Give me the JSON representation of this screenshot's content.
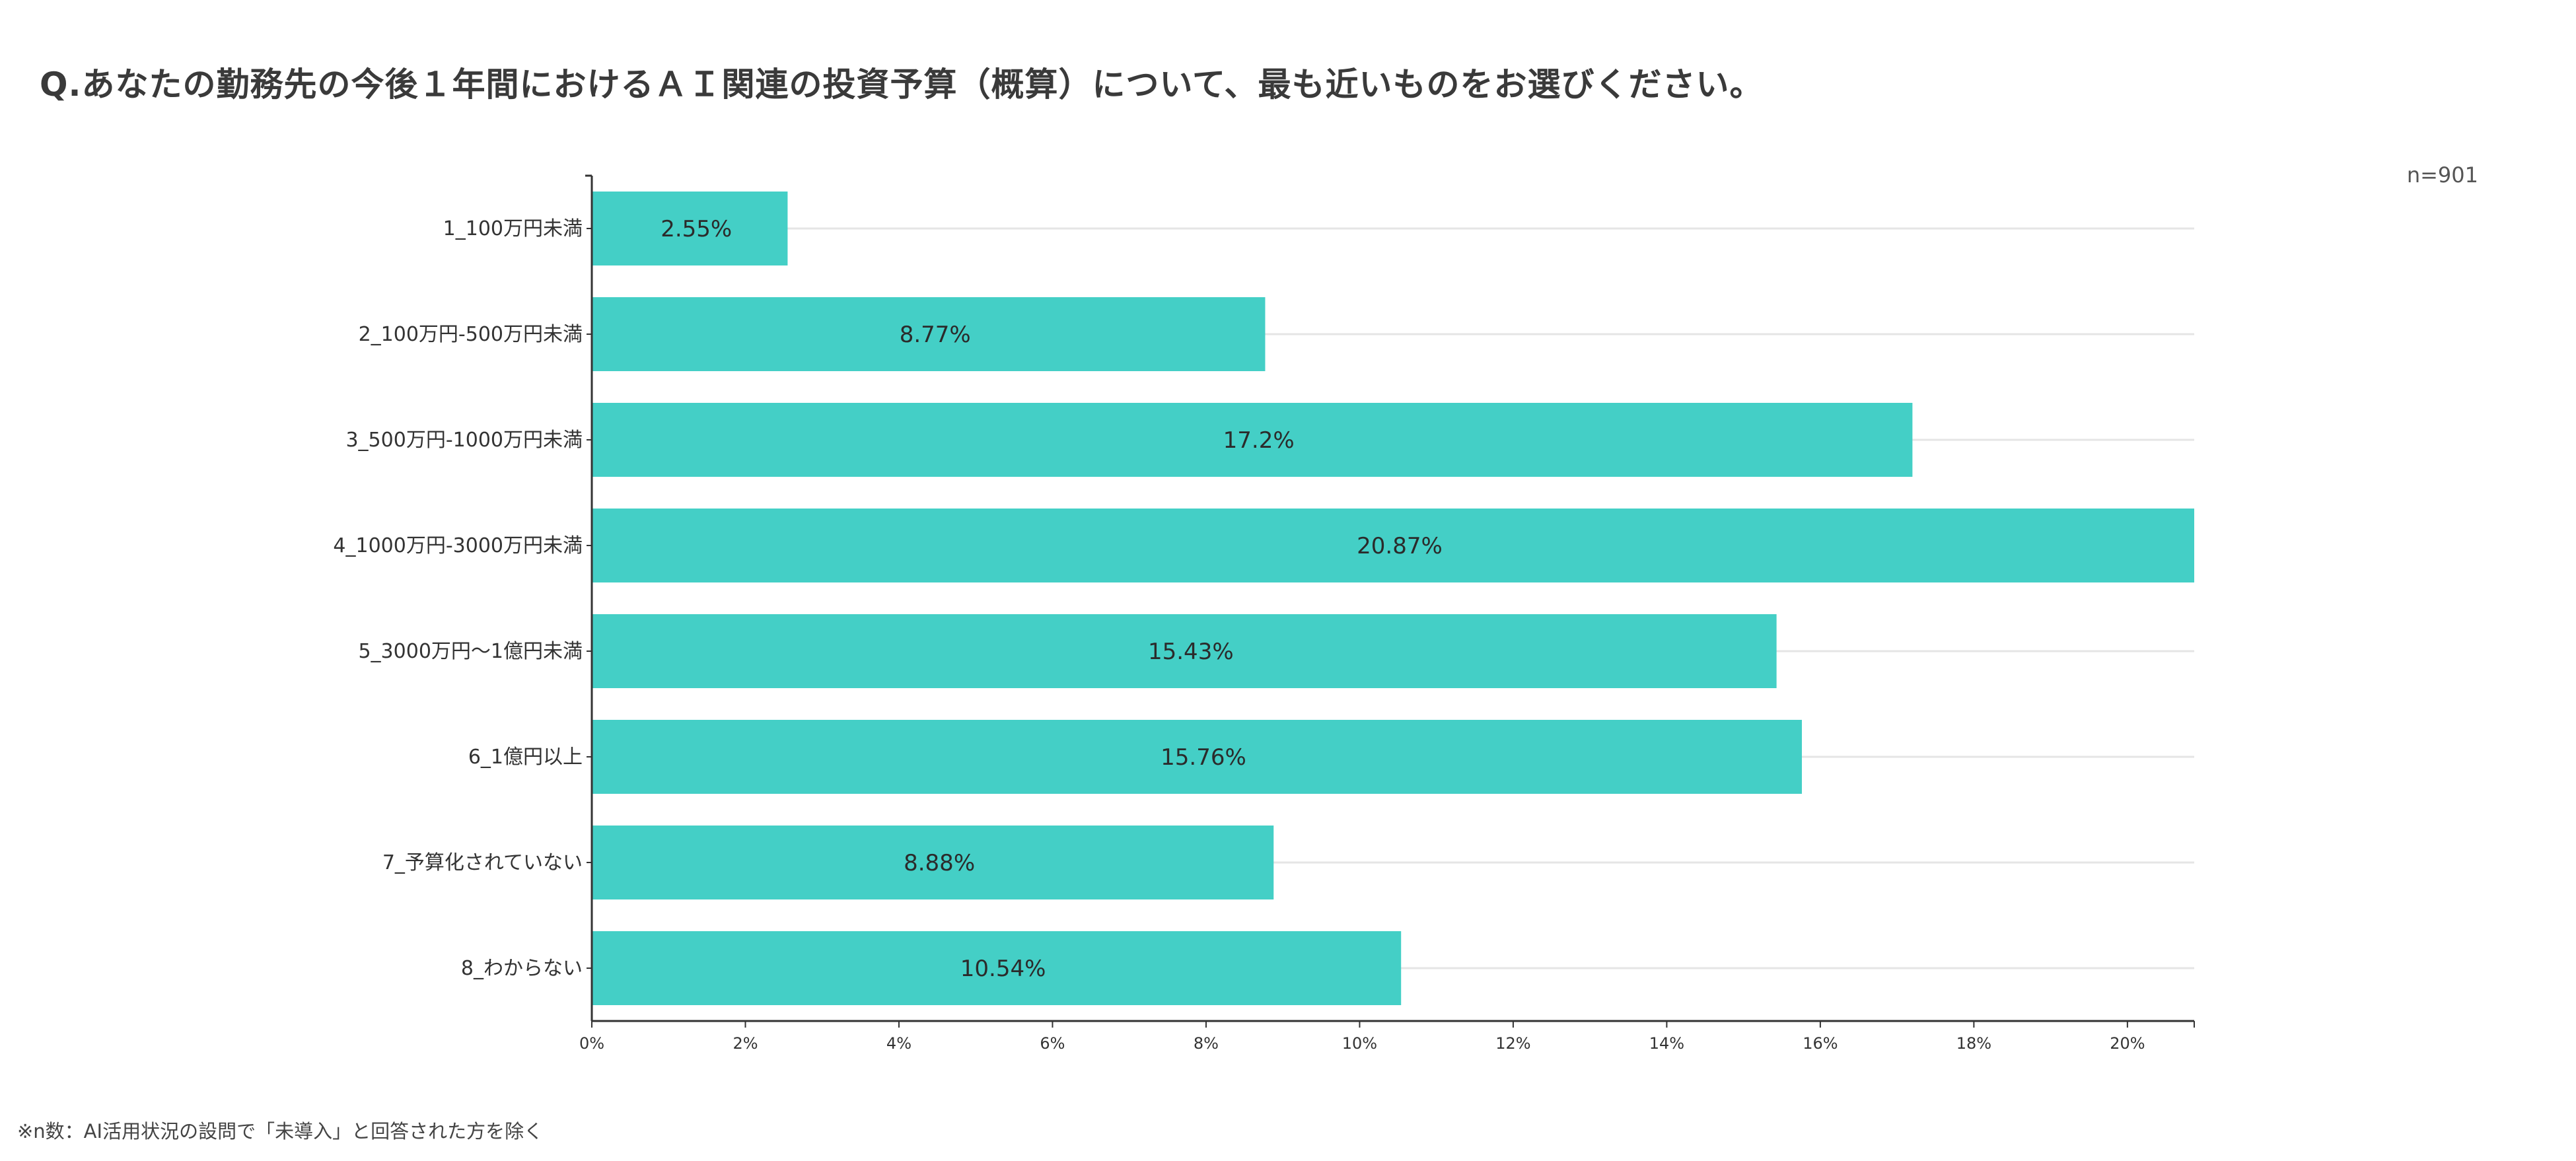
{
  "title": "Q.あなたの勤務先の今後１年間におけるＡＩ関連の投資予算（概算）について、最も近いものをお選びください。",
  "sample_size": "n=901",
  "footnote": "※n数：AI活用状況の設問で「未導入」と回答された方を除く",
  "colors": {
    "bar": "#3ecdc4",
    "grid": "#e5e5e5",
    "axis": "#333333"
  },
  "chart_data": {
    "type": "bar",
    "orientation": "horizontal",
    "title": "Q.あなたの勤務先の今後１年間におけるＡＩ関連の投資予算（概算）について、最も近いものをお選びください。",
    "xlabel": "",
    "ylabel": "",
    "categories": [
      "1_100万円未満",
      "2_100万円-500万円未満",
      "3_500万円-1000万円未満",
      "4_1000万円-3000万円未満",
      "5_3000万円～1億円未満",
      "6_1億円以上",
      "7_予算化されていない",
      "8_わからない"
    ],
    "values": [
      2.55,
      8.77,
      17.2,
      20.87,
      15.43,
      15.76,
      8.88,
      10.54
    ],
    "data_labels": [
      "2.55%",
      "8.77%",
      "17.2%",
      "20.87%",
      "15.43%",
      "15.76%",
      "8.88%",
      "10.54%"
    ],
    "xlim": [
      0,
      20.87
    ],
    "xticks": [
      0,
      2,
      4,
      6,
      8,
      10,
      12,
      14,
      16,
      18,
      20
    ],
    "xtick_labels": [
      "0%",
      "2%",
      "4%",
      "6%",
      "8%",
      "10%",
      "12%",
      "14%",
      "16%",
      "18%",
      "20%"
    ],
    "grid": true
  }
}
